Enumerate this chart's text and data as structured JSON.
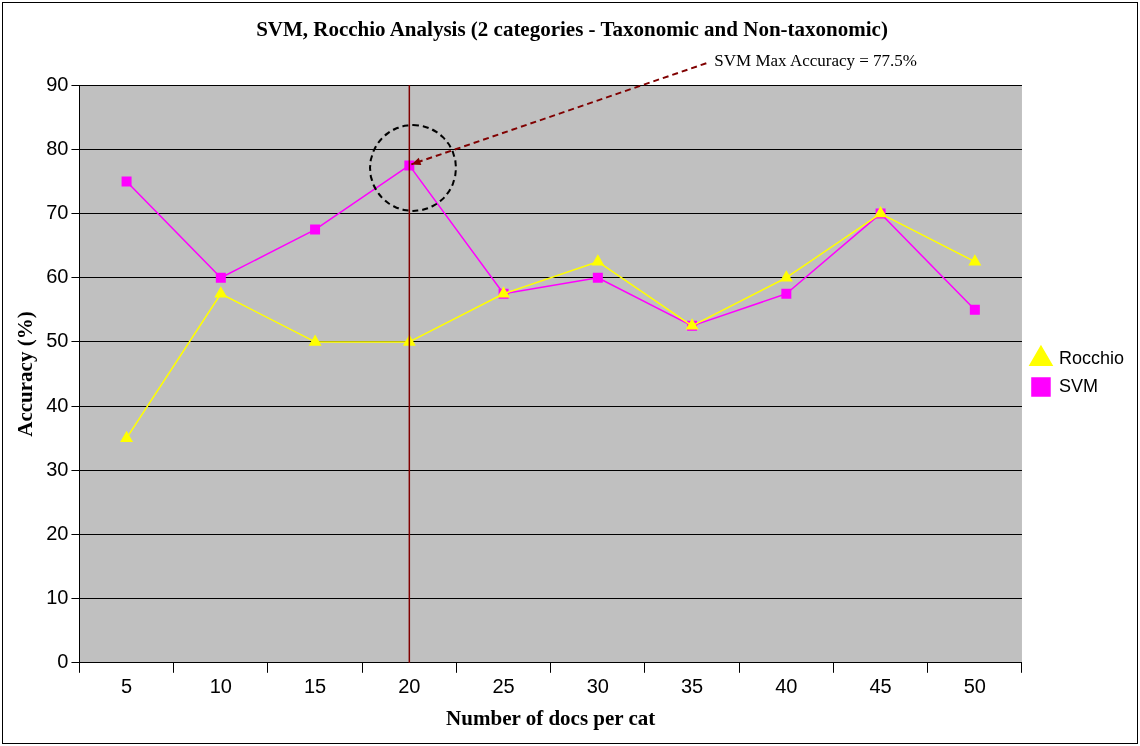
{
  "chart_data": {
    "type": "line",
    "title": "SVM, Rocchio Analysis (2 categories - Taxonomic and Non-taxonomic)",
    "xlabel": "Number of docs per cat",
    "ylabel": "Accuracy (%)",
    "categories": [
      "5",
      "10",
      "15",
      "20",
      "25",
      "30",
      "35",
      "40",
      "45",
      "50"
    ],
    "series": [
      {
        "name": "SVM",
        "color": "#ff00ff",
        "marker": "square",
        "values": [
          75,
          60,
          67.5,
          77.5,
          57.5,
          60,
          52.5,
          57.5,
          70,
          55
        ]
      },
      {
        "name": "Rocchio",
        "color": "#ffff00",
        "marker": "triangle",
        "values": [
          35,
          57.5,
          50,
          50,
          57.5,
          62.5,
          52.5,
          60,
          70,
          62.5
        ]
      }
    ],
    "ylim": [
      0,
      90
    ],
    "yticks": [
      0,
      10,
      20,
      30,
      40,
      50,
      60,
      70,
      80,
      90
    ],
    "grid": "y",
    "legend": "right",
    "line_style": "solid",
    "ref_lines": [
      {
        "axis": "x",
        "value": "20",
        "color": "#800000"
      }
    ],
    "annotations": [
      {
        "text": "SVM Max Accuracy = 77.5%",
        "x": "20",
        "y": 77.5
      }
    ]
  }
}
